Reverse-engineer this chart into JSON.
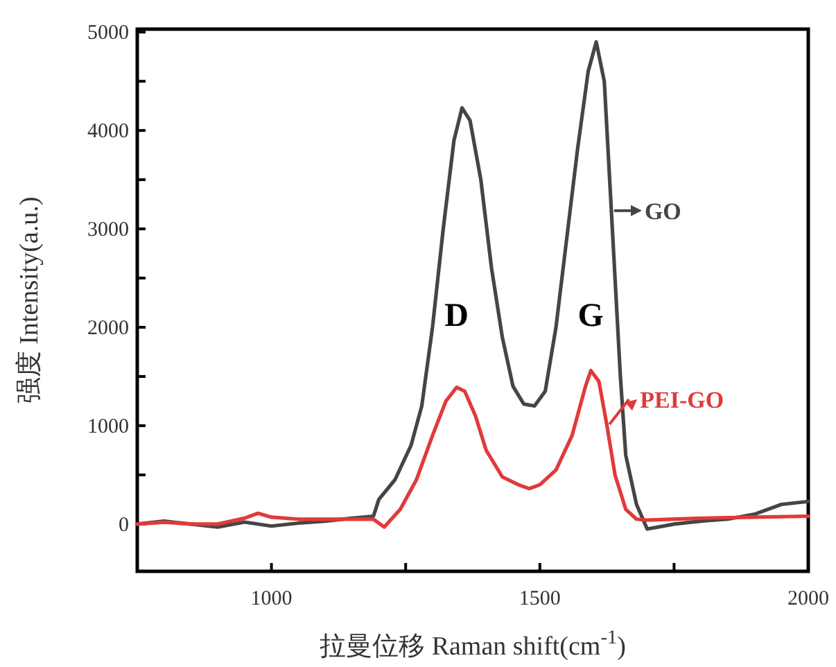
{
  "chart_data": {
    "type": "line",
    "xlabel": "拉曼位移 Raman shift(cm$^{-1}$)",
    "ylabel": "强度 Intensity(a.u.)",
    "xlim": [
      750,
      2000
    ],
    "ylim": [
      -480,
      5030
    ],
    "xticks": [
      1000,
      {
        "value": 1250,
        "label": null
      },
      1500,
      {
        "value": 1750,
        "label": null
      },
      2000
    ],
    "yticks": [
      0,
      {
        "value": 500,
        "label": null
      },
      1000,
      {
        "value": 1500,
        "label": null
      },
      2000,
      {
        "value": 2500,
        "label": null
      },
      3000,
      {
        "value": 3500,
        "label": null
      },
      4000,
      {
        "value": 4500,
        "label": null
      },
      5000
    ],
    "grid": false,
    "legend": "right",
    "marker": "none",
    "line_style": "solid",
    "annotations": [
      "D",
      "G"
    ],
    "series": [
      {
        "name": "GO",
        "color": "#454545",
        "x": [
          750,
          800,
          850,
          900,
          950,
          1000,
          1050,
          1100,
          1150,
          1190,
          1200,
          1230,
          1260,
          1280,
          1300,
          1320,
          1340,
          1355,
          1370,
          1390,
          1410,
          1430,
          1450,
          1470,
          1490,
          1510,
          1530,
          1550,
          1570,
          1590,
          1605,
          1620,
          1630,
          1640,
          1650,
          1660,
          1680,
          1700,
          1750,
          1800,
          1850,
          1900,
          1950,
          2000
        ],
        "values": [
          0,
          30,
          0,
          -30,
          20,
          -20,
          10,
          30,
          60,
          80,
          250,
          450,
          800,
          1200,
          2000,
          3000,
          3900,
          4230,
          4100,
          3500,
          2600,
          1900,
          1400,
          1220,
          1200,
          1350,
          2000,
          2900,
          3800,
          4600,
          4900,
          4500,
          3500,
          2500,
          1500,
          700,
          200,
          -50,
          0,
          30,
          50,
          100,
          200,
          230
        ]
      },
      {
        "name": "PEI-GO",
        "color": "#e03a3a",
        "x": [
          750,
          800,
          850,
          900,
          950,
          975,
          1000,
          1050,
          1100,
          1150,
          1190,
          1210,
          1240,
          1270,
          1300,
          1325,
          1345,
          1360,
          1380,
          1400,
          1430,
          1460,
          1480,
          1500,
          1530,
          1560,
          1585,
          1595,
          1610,
          1625,
          1640,
          1660,
          1680,
          1700,
          1800,
          1900,
          2000
        ],
        "values": [
          0,
          20,
          0,
          0,
          60,
          110,
          70,
          50,
          50,
          50,
          50,
          -30,
          150,
          450,
          900,
          1250,
          1390,
          1350,
          1100,
          750,
          480,
          400,
          360,
          400,
          550,
          900,
          1400,
          1560,
          1450,
          1000,
          500,
          150,
          50,
          40,
          60,
          70,
          80
        ]
      }
    ]
  }
}
